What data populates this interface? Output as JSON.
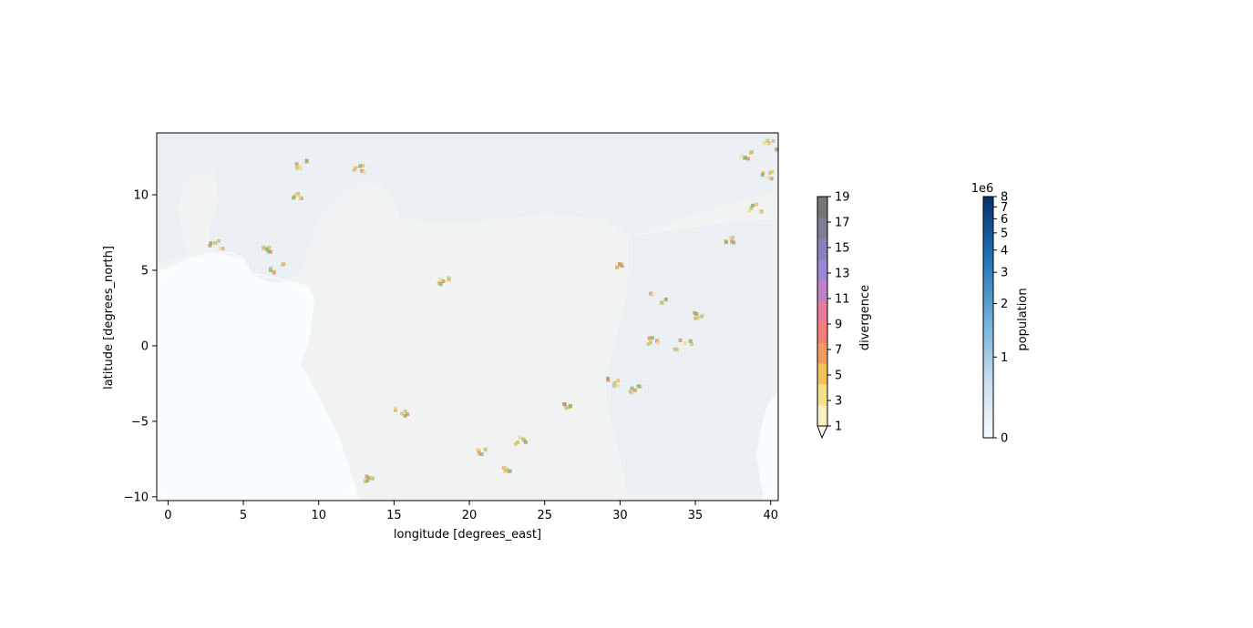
{
  "chart_data": {
    "type": "heatmap",
    "xlabel": "longitude [degrees_east]",
    "ylabel": "latitude [degrees_north]",
    "xlim": [
      -0.75,
      40.5
    ],
    "ylim": [
      -10.25,
      14.1
    ],
    "xticks": [
      0,
      5,
      10,
      15,
      20,
      25,
      30,
      35,
      40
    ],
    "yticks": [
      -10,
      -5,
      0,
      5,
      10
    ],
    "xtick_labels": [
      "0",
      "5",
      "10",
      "15",
      "20",
      "25",
      "30",
      "35",
      "40"
    ],
    "ytick_labels": [
      "−10",
      "−5",
      "0",
      "5",
      "10"
    ],
    "grid": false,
    "colorbars": [
      {
        "label": "divergence",
        "ticks": [
          1,
          3,
          5,
          7,
          9,
          11,
          13,
          15,
          17,
          19
        ],
        "tick_labels": [
          "1",
          "3",
          "5",
          "7",
          "9",
          "11",
          "13",
          "15",
          "17",
          "19"
        ],
        "range": [
          1,
          19
        ],
        "extend": "min",
        "colors": [
          "#f7f1c4",
          "#f4e089",
          "#f2c25a",
          "#f49c60",
          "#f77f7a",
          "#e57c9a",
          "#bf82c4",
          "#9a86d3",
          "#8a80ba",
          "#7d7d95",
          "#767676"
        ]
      },
      {
        "label": "population",
        "offset_label": "1e6",
        "ticks": [
          0,
          1,
          2,
          3,
          4,
          5,
          6,
          7,
          8
        ],
        "tick_labels": [
          "0",
          "1",
          "2",
          "3",
          "4",
          "5",
          "6",
          "7",
          "8"
        ],
        "range": [
          0,
          8
        ],
        "scale": "symlog",
        "colors": [
          "#f7fbff",
          "#c6dbef",
          "#6baed6",
          "#2171b5",
          "#08306b"
        ]
      }
    ],
    "regions": {
      "ocean_color": "#fafdff",
      "land_color": "#f1f3f3",
      "population_tint": "#d8e6f2",
      "hotspot_colors": [
        "#ead98a",
        "#e7b75a",
        "#d98a55",
        "#b7c27a",
        "#7fae6a"
      ]
    },
    "hotspots": [
      [
        8.8,
        12.0,
        0.6
      ],
      [
        12.7,
        11.7,
        0.5
      ],
      [
        3.2,
        6.7,
        0.6
      ],
      [
        7.2,
        5.1,
        0.7
      ],
      [
        6.6,
        6.4,
        0.4
      ],
      [
        8.6,
        9.9,
        0.4
      ],
      [
        18.3,
        4.3,
        0.5
      ],
      [
        15.5,
        -4.4,
        0.6
      ],
      [
        23.4,
        -6.3,
        0.5
      ],
      [
        13.3,
        -8.8,
        0.4
      ],
      [
        32.6,
        3.1,
        0.8
      ],
      [
        34.2,
        0.1,
        0.8
      ],
      [
        32.2,
        0.3,
        0.5
      ],
      [
        29.6,
        -2.4,
        0.6
      ],
      [
        31.0,
        -2.9,
        0.5
      ],
      [
        39.0,
        9.1,
        0.6
      ],
      [
        39.8,
        11.3,
        0.5
      ],
      [
        38.4,
        12.6,
        0.5
      ],
      [
        40.0,
        13.3,
        0.7
      ],
      [
        37.3,
        7.0,
        0.4
      ],
      [
        20.8,
        -7.0,
        0.4
      ],
      [
        22.5,
        -8.2,
        0.3
      ],
      [
        30.0,
        5.3,
        0.3
      ],
      [
        35.2,
        2.0,
        0.4
      ],
      [
        26.5,
        -4.0,
        0.3
      ]
    ]
  }
}
